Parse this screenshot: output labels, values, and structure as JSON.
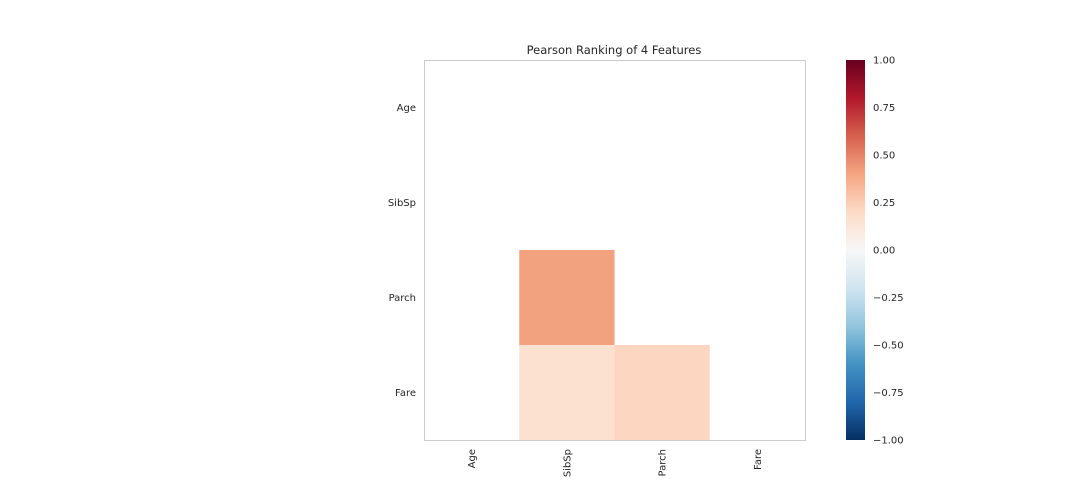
{
  "chart_data": {
    "type": "heatmap",
    "title": "Pearson Ranking of 4 Features",
    "features": [
      "Age",
      "SibSp",
      "Parch",
      "Fare"
    ],
    "matrix": [
      [
        null,
        null,
        null,
        null
      ],
      [
        null,
        null,
        null,
        null
      ],
      [
        null,
        0.41,
        null,
        null
      ],
      [
        null,
        0.16,
        0.22,
        null
      ]
    ],
    "colorbar": {
      "range": [
        -1.0,
        1.0
      ],
      "ticks": [
        "1.00",
        "0.75",
        "0.50",
        "0.25",
        "0.00",
        "−0.25",
        "−0.50",
        "−0.75",
        "−1.00"
      ],
      "colormap": "RdBu_r"
    },
    "grid": false
  }
}
